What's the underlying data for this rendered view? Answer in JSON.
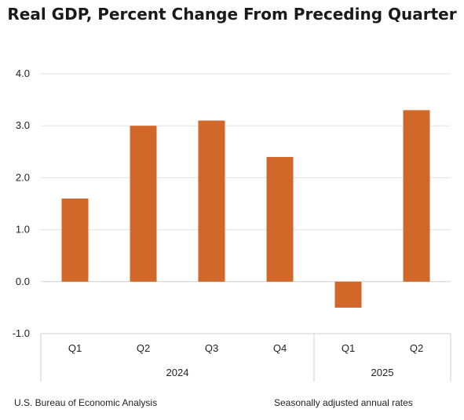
{
  "chart_data": {
    "type": "bar",
    "title": "Real GDP, Percent Change From Preceding Quarter",
    "categories": [
      "Q1",
      "Q2",
      "Q3",
      "Q4",
      "Q1",
      "Q2"
    ],
    "groups": [
      {
        "label": "2024",
        "count": 4
      },
      {
        "label": "2025",
        "count": 2
      }
    ],
    "series": [
      {
        "values": [
          1.6,
          3.0,
          3.1,
          2.4,
          -0.5,
          3.3
        ],
        "color": "#D2672A"
      }
    ],
    "yticks": [
      "4.0",
      "3.0",
      "2.0",
      "1.0",
      "0.0",
      "-1.0"
    ],
    "ylim": [
      -1.0,
      4.0
    ],
    "grid": true,
    "legend": "none"
  },
  "footer": {
    "source": "U.S. Bureau of Economic Analysis",
    "note": "Seasonally adjusted annual rates"
  }
}
